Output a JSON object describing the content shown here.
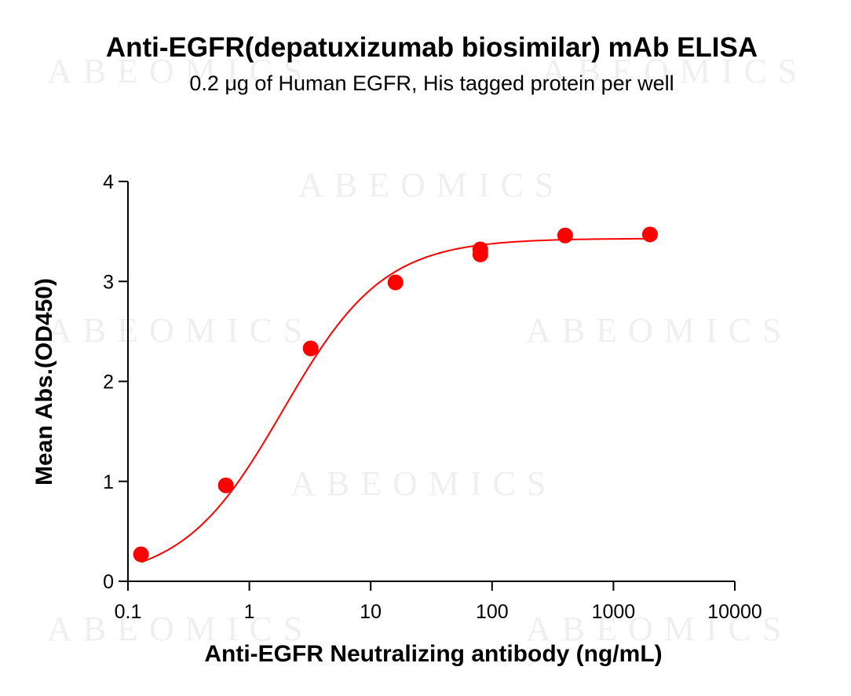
{
  "chart_data": {
    "type": "scatter",
    "title": "Anti-EGFR(depatuxizumab biosimilar) mAb ELISA",
    "subtitle": "0.2 μg of Human EGFR, His tagged protein per well",
    "xlabel": "Anti-EGFR Neutralizing antibody (ng/mL)",
    "ylabel": "Mean Abs.(OD450)",
    "x_scale": "log",
    "xlim": [
      0.1,
      10000
    ],
    "ylim": [
      0,
      4
    ],
    "x_ticks": [
      "0.1",
      "1",
      "10",
      "100",
      "1000",
      "10000"
    ],
    "y_ticks": [
      "0",
      "1",
      "2",
      "3",
      "4"
    ],
    "grid": false,
    "series": [
      {
        "x": [
          0.128,
          0.64,
          3.2,
          16,
          80,
          80,
          400,
          2000
        ],
        "y": [
          0.27,
          0.96,
          2.33,
          2.99,
          3.27,
          3.32,
          3.46,
          3.47
        ],
        "color": "#ff0000",
        "fit_curve": {
          "model": "4PL",
          "bottom": 0.0,
          "top": 3.43,
          "ec50": 1.9,
          "hill": 1.05
        }
      }
    ],
    "watermark": "ABEOMICS"
  }
}
